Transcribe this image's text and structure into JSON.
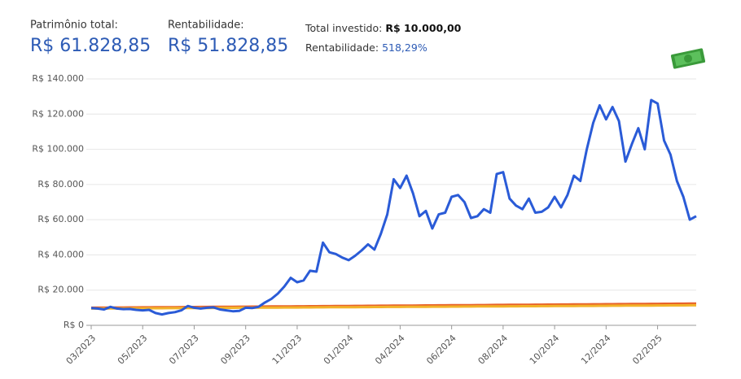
{
  "header": {
    "patrimonio_label": "Patrimônio total:",
    "patrimonio_value": "R$ 61.828,85",
    "rentabilidade_label": "Rentabilidade:",
    "rentabilidade_value": "R$ 51.828,85",
    "investido_label": "Total investido:",
    "investido_value": "R$ 10.000,00",
    "rent_pct_label": "Rentabilidade:",
    "rent_pct_value": "518,29%"
  },
  "chart_data": {
    "type": "line",
    "categories": [
      "03/2023",
      null,
      null,
      null,
      null,
      null,
      null,
      null,
      "05/2023",
      null,
      null,
      null,
      null,
      null,
      null,
      null,
      "07/2023",
      null,
      null,
      null,
      null,
      null,
      null,
      null,
      "09/2023",
      null,
      null,
      null,
      null,
      null,
      null,
      null,
      "11/2023",
      null,
      null,
      null,
      null,
      null,
      null,
      null,
      "01/2024",
      null,
      null,
      null,
      null,
      null,
      null,
      null,
      "04/2024",
      null,
      null,
      null,
      null,
      null,
      null,
      null,
      "06/2024",
      null,
      null,
      null,
      null,
      null,
      null,
      null,
      "08/2024",
      null,
      null,
      null,
      null,
      null,
      null,
      null,
      "10/2024",
      null,
      null,
      null,
      null,
      null,
      null,
      null,
      "12/2024",
      null,
      null,
      null,
      null,
      null,
      null,
      null,
      "02/2025",
      null,
      null,
      null,
      null,
      null,
      null
    ],
    "series": [
      {
        "color": "#e8622a",
        "values": [
          10000,
          10025,
          10050,
          10075,
          10100,
          10125,
          10150,
          10175,
          10200,
          10225,
          10250,
          10275,
          10300,
          10325,
          10350,
          10375,
          10400,
          10425,
          10450,
          10475,
          10500,
          10525,
          10550,
          10575,
          10600,
          10625,
          10650,
          10675,
          10700,
          10725,
          10750,
          10775,
          10800,
          10825,
          10850,
          10875,
          10900,
          10925,
          10950,
          10975,
          11000,
          11025,
          11050,
          11075,
          11100,
          11125,
          11150,
          11175,
          11200,
          11225,
          11250,
          11275,
          11300,
          11325,
          11350,
          11375,
          11400,
          11425,
          11450,
          11475,
          11500,
          11525,
          11550,
          11575,
          11600,
          11625,
          11650,
          11675,
          11700,
          11725,
          11750,
          11775,
          11800,
          11825,
          11850,
          11875,
          11900,
          11925,
          11950,
          11975,
          12000,
          12025,
          12050,
          12075,
          12100,
          12125,
          12150,
          12175,
          12200,
          12225,
          12250,
          12275,
          12300,
          12325,
          12350
        ]
      },
      {
        "color": "#f2b32a",
        "values": [
          9500,
          9520,
          9540,
          9560,
          9580,
          9600,
          9620,
          9640,
          9660,
          9680,
          9700,
          9720,
          9740,
          9760,
          9780,
          9800,
          9820,
          9840,
          9860,
          9880,
          9900,
          9920,
          9940,
          9960,
          9980,
          10000,
          10020,
          10040,
          10060,
          10080,
          10100,
          10120,
          10140,
          10160,
          10180,
          10200,
          10220,
          10240,
          10260,
          10280,
          10300,
          10320,
          10340,
          10360,
          10380,
          10400,
          10420,
          10440,
          10460,
          10480,
          10500,
          10520,
          10540,
          10560,
          10580,
          10600,
          10620,
          10640,
          10660,
          10680,
          10700,
          10720,
          10740,
          10760,
          10780,
          10800,
          10820,
          10840,
          10860,
          10880,
          10900,
          10920,
          10940,
          10960,
          10980,
          11000,
          11020,
          11040,
          11060,
          11080,
          11100,
          11120,
          11140,
          11160,
          11180,
          11200,
          11220,
          11240,
          11260,
          11280,
          11300,
          11320,
          11340,
          11360,
          11380
        ]
      },
      {
        "color": "#2a5bd7",
        "values": [
          9800,
          9500,
          9000,
          10500,
          9500,
          9200,
          9300,
          8800,
          8500,
          8800,
          7000,
          6200,
          7000,
          7500,
          8500,
          11000,
          10000,
          9500,
          10000,
          10200,
          9000,
          8500,
          8000,
          8200,
          10000,
          9800,
          10500,
          13000,
          15000,
          18000,
          22000,
          27000,
          24500,
          25500,
          31000,
          30500,
          47000,
          41500,
          40500,
          38500,
          37000,
          39500,
          42500,
          46000,
          43000,
          52000,
          63000,
          83000,
          78000,
          85000,
          75000,
          62000,
          65000,
          55000,
          63000,
          64000,
          73000,
          74000,
          70000,
          61000,
          62000,
          66000,
          64000,
          86000,
          87000,
          72000,
          68000,
          66000,
          72000,
          64000,
          64500,
          67000,
          73000,
          67000,
          74000,
          85000,
          82000,
          100000,
          115000,
          125000,
          117000,
          124000,
          116000,
          93000,
          103000,
          112000,
          100000,
          128000,
          126000,
          105000,
          97000,
          82000,
          73000,
          60000,
          62000
        ]
      }
    ],
    "ylim": [
      0,
      140000
    ],
    "yticks": [
      {
        "value": 0,
        "label": "R$ 0"
      },
      {
        "value": 20000,
        "label": "R$ 20.000"
      },
      {
        "value": 40000,
        "label": "R$ 40.000"
      },
      {
        "value": 60000,
        "label": "R$ 60.000"
      },
      {
        "value": 80000,
        "label": "R$ 80.000"
      },
      {
        "value": 100000,
        "label": "R$ 100.000"
      },
      {
        "value": 120000,
        "label": "R$ 120.000"
      },
      {
        "value": 140000,
        "label": "R$ 140.000"
      }
    ],
    "grid": true
  }
}
